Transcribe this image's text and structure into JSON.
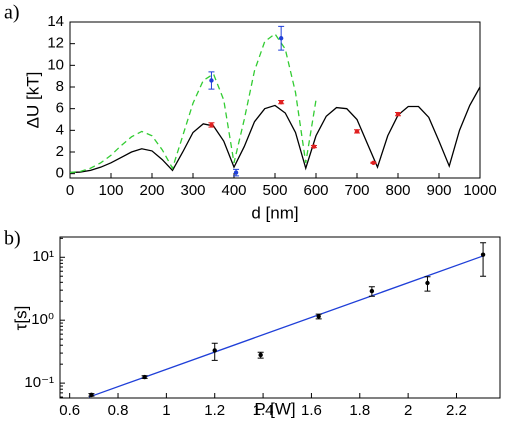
{
  "chart_data": [
    {
      "type": "line",
      "panel_label": "a)",
      "xlabel": "d [nm]",
      "ylabel": "ΔU [kT]",
      "xlim": [
        0,
        1000
      ],
      "ylim": [
        -0.4,
        14
      ],
      "xticks": [
        0,
        100,
        200,
        300,
        400,
        500,
        600,
        700,
        800,
        900,
        1000
      ],
      "yticks": [
        0,
        2,
        4,
        6,
        8,
        10,
        12,
        14
      ],
      "series": [
        {
          "style": "solid",
          "color": "#000000",
          "x": [
            0,
            25,
            50,
            75,
            100,
            125,
            150,
            175,
            200,
            225,
            250,
            275,
            300,
            325,
            350,
            375,
            400,
            425,
            450,
            475,
            500,
            525,
            550,
            575,
            600,
            625,
            650,
            675,
            700,
            725,
            750,
            775,
            800,
            825,
            850,
            875,
            900,
            925,
            950,
            975,
            1000
          ],
          "values": [
            0.1,
            0.15,
            0.3,
            0.6,
            1.0,
            1.5,
            2.0,
            2.3,
            2.1,
            1.3,
            0.3,
            2.0,
            3.8,
            4.6,
            4.4,
            3.0,
            0.6,
            2.5,
            4.8,
            6.0,
            6.3,
            5.6,
            3.8,
            0.5,
            3.5,
            5.3,
            6.1,
            6.0,
            5.0,
            2.8,
            0.6,
            3.5,
            5.4,
            6.2,
            6.2,
            5.2,
            3.0,
            0.7,
            4.0,
            6.3,
            8.0
          ]
        },
        {
          "style": "dashed",
          "color": "#33cc33",
          "x": [
            0,
            25,
            50,
            75,
            100,
            125,
            150,
            175,
            200,
            225,
            250,
            275,
            300,
            325,
            350,
            375,
            400,
            425,
            450,
            475,
            500,
            525,
            550,
            575,
            600
          ],
          "values": [
            0.1,
            0.2,
            0.5,
            1.0,
            1.7,
            2.6,
            3.4,
            3.9,
            3.5,
            2.2,
            0.5,
            3.5,
            6.5,
            8.6,
            9.2,
            6.8,
            1.0,
            5.0,
            9.5,
            12.2,
            12.9,
            11.5,
            7.5,
            1.0,
            6.8
          ]
        },
        {
          "style": "points",
          "color": "#1f3fd8",
          "x": [
            345,
            405,
            515
          ],
          "values": [
            8.6,
            0.1,
            12.5
          ],
          "errors": [
            0.8,
            0.3,
            1.1
          ]
        },
        {
          "style": "points",
          "color": "#e02020",
          "x": [
            345,
            515,
            595,
            700,
            740,
            800
          ],
          "values": [
            4.5,
            6.6,
            2.5,
            3.9,
            1.0,
            5.5
          ],
          "errors": [
            0.2,
            0.15,
            0.1,
            0.15,
            0.05,
            0.15
          ]
        }
      ]
    },
    {
      "type": "scatter",
      "panel_label": "b)",
      "xlabel": "P [W]",
      "ylabel": "τ[s]",
      "log_y": true,
      "xlim": [
        0.56,
        2.38
      ],
      "ylim": [
        0.058,
        21
      ],
      "xticks": [
        0.6,
        0.8,
        1,
        1.2,
        1.4,
        1.6,
        1.8,
        2,
        2.2
      ],
      "yticks": [
        {
          "value": 0.1,
          "label": "10⁻¹"
        },
        {
          "value": 1,
          "label": "10⁰"
        },
        {
          "value": 10,
          "label": "10¹"
        }
      ],
      "series": [
        {
          "style": "solid",
          "color": "#1f3fd8",
          "x": [
            0.68,
            2.31
          ],
          "values": [
            0.06,
            10.5
          ]
        },
        {
          "style": "points",
          "color": "#000000",
          "x": [
            0.69,
            0.91,
            1.2,
            1.39,
            1.63,
            1.85,
            2.08,
            2.31
          ],
          "values": [
            0.065,
            0.125,
            0.33,
            0.28,
            1.15,
            2.9,
            3.9,
            11
          ],
          "errors": [
            0.003,
            0.006,
            0.1,
            0.03,
            0.1,
            0.5,
            1,
            6
          ]
        }
      ]
    }
  ]
}
